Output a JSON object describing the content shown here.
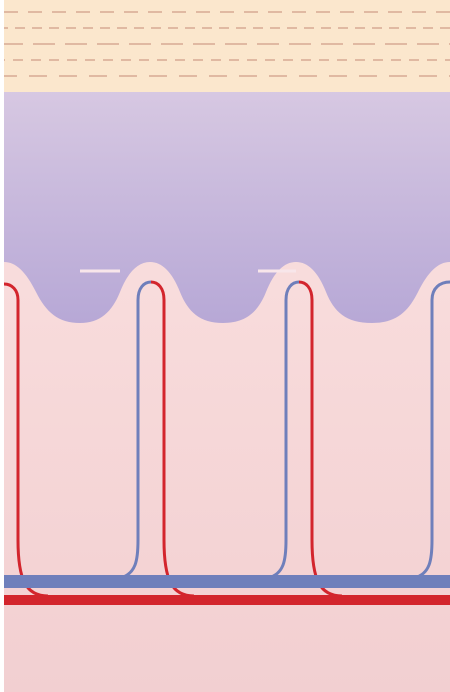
{
  "diagram": {
    "kind": "capillary loops in dermal papillae beneath epidermis",
    "colors": {
      "page_background": "#ffffff",
      "top_band": "#fbe7cd",
      "top_band_dashes": "#e0b9a2",
      "overlay_gradient_top": "#d7c8e2",
      "overlay_gradient_bottom": "#b7a8d6",
      "tissue_gradient_top": "#fbe2e1",
      "tissue_gradient_bottom": "#f2cfd1",
      "artery_red": "#d3252d",
      "vein_blue": "#6f7fbb",
      "highlight": "#f8e6ea"
    },
    "loop_count": 4
  }
}
